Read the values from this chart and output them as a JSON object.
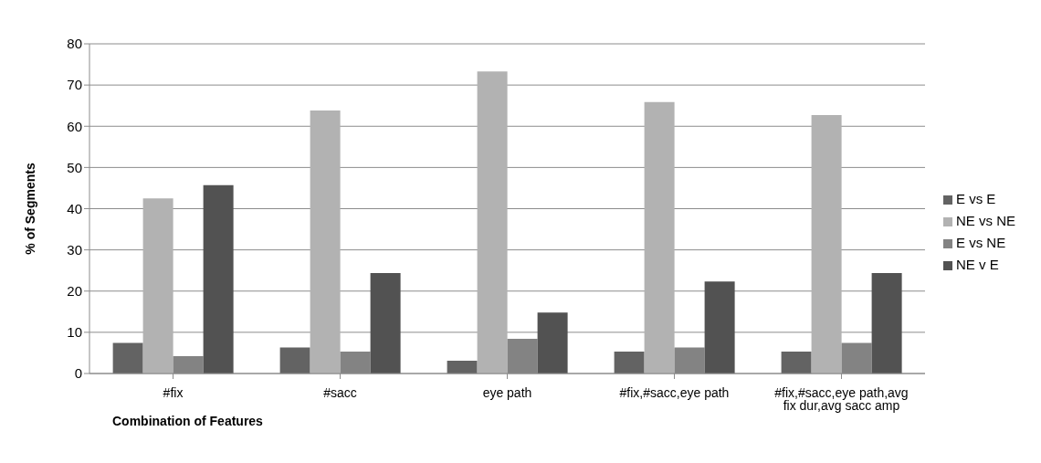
{
  "chart_data": {
    "type": "bar",
    "xlabel": "Combination of Features",
    "ylabel": "% of Segments",
    "categories": [
      "#fix",
      "#sacc",
      "eye path",
      "#fix,#sacc,eye path",
      "#fix,#sacc,eye path,avg fix dur,avg sacc amp"
    ],
    "series": [
      {
        "name": "E vs E",
        "color": "#636363",
        "values": [
          7.4,
          6.3,
          3.1,
          5.3,
          5.3
        ]
      },
      {
        "name": "NE vs NE",
        "color": "#b2b2b2",
        "values": [
          42.5,
          63.8,
          73.3,
          65.9,
          62.7
        ]
      },
      {
        "name": "E vs NE",
        "color": "#838383",
        "values": [
          4.2,
          5.3,
          8.4,
          6.3,
          7.4
        ]
      },
      {
        "name": "NE v E",
        "color": "#525252",
        "values": [
          45.7,
          24.4,
          14.8,
          22.3,
          24.4
        ]
      }
    ],
    "ylim": [
      0,
      80
    ],
    "yticks": [
      0,
      10,
      20,
      30,
      40,
      50,
      60,
      70,
      80
    ],
    "grid": "y",
    "legend": "right"
  }
}
